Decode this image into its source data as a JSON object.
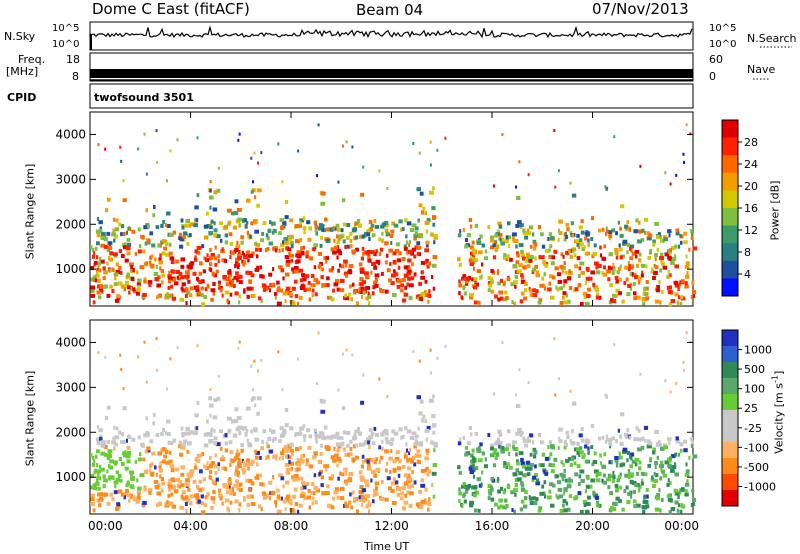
{
  "header": {
    "title": "Dome C East (fitACF)",
    "beam": "Beam 04",
    "date": "07/Nov/2013"
  },
  "top_panels": {
    "nsky_label": "N.Sky",
    "nsky_ticks": [
      "10^5",
      "10^0"
    ],
    "nsearch_label": "N.Search",
    "nsearch_ticks": [
      "10^5",
      "10^0"
    ],
    "freq_label": "Freq.",
    "freq_unit": "[MHz]",
    "freq_ticks": [
      "18",
      "8"
    ],
    "nave_label": "Nave",
    "nave_ticks": [
      "60",
      "0"
    ],
    "cpid_label": "CPID",
    "cpid_value": "twofsound 3501"
  },
  "chart_data": [
    {
      "type": "heatmap",
      "title": "",
      "xlabel": "",
      "ylabel": "Slant Range [km]",
      "xlim": [
        0,
        24
      ],
      "ylim": [
        180,
        4500
      ],
      "yticks": [
        1000,
        2000,
        3000,
        4000
      ],
      "colorbar": {
        "label": "Power [dB]",
        "ticks": [
          "28",
          "24",
          "20",
          "16",
          "12",
          "8",
          "4"
        ],
        "colors": [
          "#e00000",
          "#ff2000",
          "#ff6a00",
          "#f59c00",
          "#d4c800",
          "#7fbf3f",
          "#3d9a6a",
          "#2a7f7f",
          "#1e4fa0",
          "#0010ff"
        ]
      },
      "occupancy_note_hours": [
        [
          0,
          13.6
        ],
        [
          14.6,
          24
        ]
      ],
      "range_band_km": [
        300,
        2200
      ]
    },
    {
      "type": "heatmap",
      "title": "",
      "xlabel": "Time UT",
      "ylabel": "Slant Range [km]",
      "xlim": [
        0,
        24
      ],
      "ylim": [
        180,
        4500
      ],
      "yticks": [
        1000,
        2000,
        3000,
        4000
      ],
      "xticks": [
        "00:00",
        "04:00",
        "08:00",
        "12:00",
        "16:00",
        "20:00",
        "00:00"
      ],
      "colorbar": {
        "label": "Velocity [m s",
        "label_sup": "-1",
        "ticks": [
          "1000",
          "500",
          "100",
          "25",
          "-25",
          "-100",
          "-500",
          "-1000"
        ],
        "colors": [
          "#2030c0",
          "#3060d0",
          "#2e8b57",
          "#5aa86a",
          "#66cc33",
          "#c8c8c8",
          "#c8c8c8",
          "#ffb060",
          "#ff8c1a",
          "#ff4a00",
          "#e00000"
        ]
      }
    }
  ]
}
